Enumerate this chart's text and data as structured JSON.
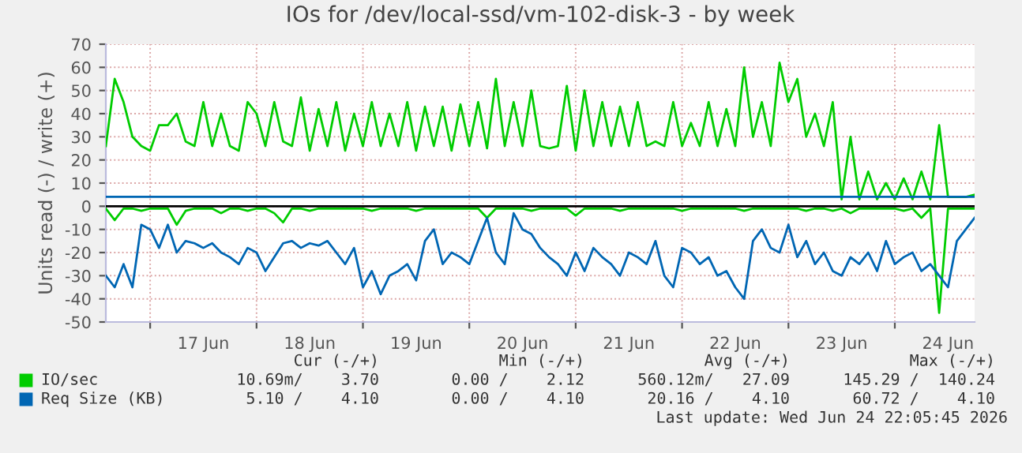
{
  "chart_data": {
    "type": "line",
    "title": "IOs for /dev/local-ssd/vm-102-disk-3 - by week",
    "ylabel": "Units read (-) / write (+)",
    "x": [
      "2026-06-16T14:00",
      "2026-06-16T16:00",
      "2026-06-16T18:00",
      "2026-06-16T20:00",
      "2026-06-16T22:00",
      "2026-06-17T00:00",
      "2026-06-17T02:00",
      "2026-06-17T04:00",
      "2026-06-17T06:00",
      "2026-06-17T08:00",
      "2026-06-17T10:00",
      "2026-06-17T12:00",
      "2026-06-17T14:00",
      "2026-06-17T16:00",
      "2026-06-17T18:00",
      "2026-06-17T20:00",
      "2026-06-17T22:00",
      "2026-06-18T00:00",
      "2026-06-18T02:00",
      "2026-06-18T04:00",
      "2026-06-18T06:00",
      "2026-06-18T08:00",
      "2026-06-18T10:00",
      "2026-06-18T12:00",
      "2026-06-18T14:00",
      "2026-06-18T16:00",
      "2026-06-18T18:00",
      "2026-06-18T20:00",
      "2026-06-18T22:00",
      "2026-06-19T00:00",
      "2026-06-19T02:00",
      "2026-06-19T04:00",
      "2026-06-19T06:00",
      "2026-06-19T08:00",
      "2026-06-19T10:00",
      "2026-06-19T12:00",
      "2026-06-19T14:00",
      "2026-06-19T16:00",
      "2026-06-19T18:00",
      "2026-06-19T20:00",
      "2026-06-19T22:00",
      "2026-06-20T00:00",
      "2026-06-20T02:00",
      "2026-06-20T04:00",
      "2026-06-20T06:00",
      "2026-06-20T08:00",
      "2026-06-20T10:00",
      "2026-06-20T12:00",
      "2026-06-20T14:00",
      "2026-06-20T16:00",
      "2026-06-20T18:00",
      "2026-06-20T20:00",
      "2026-06-20T22:00",
      "2026-06-21T00:00",
      "2026-06-21T02:00",
      "2026-06-21T04:00",
      "2026-06-21T06:00",
      "2026-06-21T08:00",
      "2026-06-21T10:00",
      "2026-06-21T12:00",
      "2026-06-21T14:00",
      "2026-06-21T16:00",
      "2026-06-21T18:00",
      "2026-06-21T20:00",
      "2026-06-21T22:00",
      "2026-06-22T00:00",
      "2026-06-22T02:00",
      "2026-06-22T04:00",
      "2026-06-22T06:00",
      "2026-06-22T08:00",
      "2026-06-22T10:00",
      "2026-06-22T12:00",
      "2026-06-22T14:00",
      "2026-06-22T16:00",
      "2026-06-22T18:00",
      "2026-06-22T20:00",
      "2026-06-22T22:00",
      "2026-06-23T00:00",
      "2026-06-23T02:00",
      "2026-06-23T04:00",
      "2026-06-23T06:00",
      "2026-06-23T08:00",
      "2026-06-23T10:00",
      "2026-06-23T12:00",
      "2026-06-23T14:00",
      "2026-06-23T16:00",
      "2026-06-23T18:00",
      "2026-06-23T20:00",
      "2026-06-23T22:00",
      "2026-06-24T00:00",
      "2026-06-24T02:00",
      "2026-06-24T04:00",
      "2026-06-24T06:00",
      "2026-06-24T08:00",
      "2026-06-24T10:00",
      "2026-06-24T12:00",
      "2026-06-24T14:00",
      "2026-06-24T16:00",
      "2026-06-24T18:00"
    ],
    "series": [
      {
        "name": "IO/sec",
        "color": "#00cc00",
        "values": [
          26,
          55,
          45,
          30,
          26,
          24,
          35,
          35,
          40,
          28,
          26,
          45,
          26,
          40,
          26,
          24,
          45,
          40,
          26,
          45,
          28,
          26,
          47,
          24,
          42,
          26,
          45,
          24,
          40,
          26,
          45,
          26,
          40,
          26,
          45,
          24,
          43,
          26,
          43,
          24,
          44,
          26,
          45,
          25,
          55,
          26,
          45,
          26,
          50,
          26,
          25,
          26,
          52,
          24,
          50,
          26,
          45,
          26,
          43,
          26,
          45,
          26,
          28,
          26,
          45,
          26,
          36,
          26,
          45,
          26,
          42,
          26,
          60,
          30,
          45,
          26,
          62,
          45,
          55,
          30,
          40,
          26,
          45,
          3,
          30,
          3,
          15,
          3,
          10,
          3,
          12,
          3,
          15,
          3,
          35,
          4,
          4,
          4,
          5
        ]
      },
      {
        "color": "#00cc00",
        "values": [
          -1,
          -6,
          -1,
          -1,
          -2,
          -1,
          -1,
          -1,
          -8,
          -2,
          -1,
          -1,
          -1,
          -3,
          -1,
          -1,
          -2,
          -1,
          -1,
          -3,
          -7,
          -1,
          -1,
          -2,
          -1,
          -1,
          -1,
          -1,
          -1,
          -1,
          -2,
          -1,
          -1,
          -1,
          -1,
          -2,
          -1,
          -1,
          -1,
          -1,
          -1,
          -1,
          -1,
          -5,
          -1,
          -1,
          -1,
          -1,
          -2,
          -1,
          -1,
          -1,
          -1,
          -4,
          -1,
          -1,
          -1,
          -1,
          -2,
          -1,
          -1,
          -1,
          -1,
          -1,
          -1,
          -2,
          -1,
          -1,
          -1,
          -1,
          -1,
          -1,
          -2,
          -1,
          -1,
          -1,
          -1,
          -1,
          -1,
          -2,
          -1,
          -1,
          -2,
          -1,
          -3,
          -1,
          -1,
          -1,
          -1,
          -1,
          -2,
          -1,
          -5,
          -1,
          -46,
          -1,
          -1,
          -1,
          -1
        ]
      },
      {
        "color": "#0066b3",
        "values": [
          -30,
          -35,
          -25,
          -35,
          -8,
          -10,
          -18,
          -8,
          -20,
          -15,
          -16,
          -18,
          -16,
          -20,
          -22,
          -25,
          -18,
          -20,
          -28,
          -22,
          -16,
          -15,
          -18,
          -16,
          -17,
          -15,
          -20,
          -25,
          -18,
          -35,
          -28,
          -38,
          -30,
          -28,
          -25,
          -32,
          -15,
          -10,
          -25,
          -20,
          -22,
          -25,
          -15,
          -5,
          -20,
          -25,
          -3,
          -10,
          -12,
          -18,
          -22,
          -25,
          -30,
          -20,
          -28,
          -18,
          -22,
          -25,
          -30,
          -20,
          -22,
          -25,
          -15,
          -30,
          -35,
          -18,
          -20,
          -25,
          -22,
          -30,
          -28,
          -35,
          -40,
          -15,
          -10,
          -18,
          -20,
          -8,
          -22,
          -15,
          -25,
          -20,
          -28,
          -30,
          -22,
          -25,
          -20,
          -28,
          -15,
          -25,
          -22,
          -20,
          -28,
          -25,
          -30,
          -35,
          -15,
          -10,
          -5
        ]
      },
      {
        "name": "Req Size (KB)",
        "color": "#0066b3",
        "x": [
          "2026-06-16T14:00",
          "2026-06-24T18:00"
        ],
        "values": [
          4.1,
          4.1
        ]
      }
    ],
    "ref_lines": [
      {
        "axis": "y",
        "value": 0,
        "color": "#000000"
      }
    ],
    "xlim": [
      "2026-06-16T14:00",
      "2026-06-24T18:00"
    ],
    "xticks": [
      {
        "value": "2026-06-17T00:00",
        "label": null
      },
      {
        "value": "2026-06-17T12:00",
        "label": "17 Jun"
      },
      {
        "value": "2026-06-18T00:00",
        "label": null
      },
      {
        "value": "2026-06-18T12:00",
        "label": "18 Jun"
      },
      {
        "value": "2026-06-19T00:00",
        "label": null
      },
      {
        "value": "2026-06-19T12:00",
        "label": "19 Jun"
      },
      {
        "value": "2026-06-20T00:00",
        "label": null
      },
      {
        "value": "2026-06-20T12:00",
        "label": "20 Jun"
      },
      {
        "value": "2026-06-21T00:00",
        "label": null
      },
      {
        "value": "2026-06-21T12:00",
        "label": "21 Jun"
      },
      {
        "value": "2026-06-22T00:00",
        "label": null
      },
      {
        "value": "2026-06-22T12:00",
        "label": "22 Jun"
      },
      {
        "value": "2026-06-23T00:00",
        "label": null
      },
      {
        "value": "2026-06-23T12:00",
        "label": "23 Jun"
      },
      {
        "value": "2026-06-24T00:00",
        "label": null
      },
      {
        "value": "2026-06-24T12:00",
        "label": "24 Jun"
      }
    ],
    "ylim": [
      -50,
      70
    ],
    "yticks": [
      -50,
      -40,
      -30,
      -20,
      -10,
      0,
      10,
      20,
      30,
      40,
      50,
      60,
      70
    ],
    "grid": true,
    "legend": "bottom left",
    "line_style": "solid",
    "marker": "none",
    "annotations": [
      "Cur (-/+)",
      "Min (-/+)",
      "Avg (-/+)",
      "Max (-/+)",
      "10.69m/    3.70",
      "0.00 /    2.12",
      "560.12m/   27.09",
      "145.29 /  140.24",
      "5.10 /    4.10",
      "0.00 /    4.10",
      "20.16 /    4.10",
      "60.72 /    4.10",
      "Last update: Wed Jun 24 22:05:45 2026"
    ]
  }
}
